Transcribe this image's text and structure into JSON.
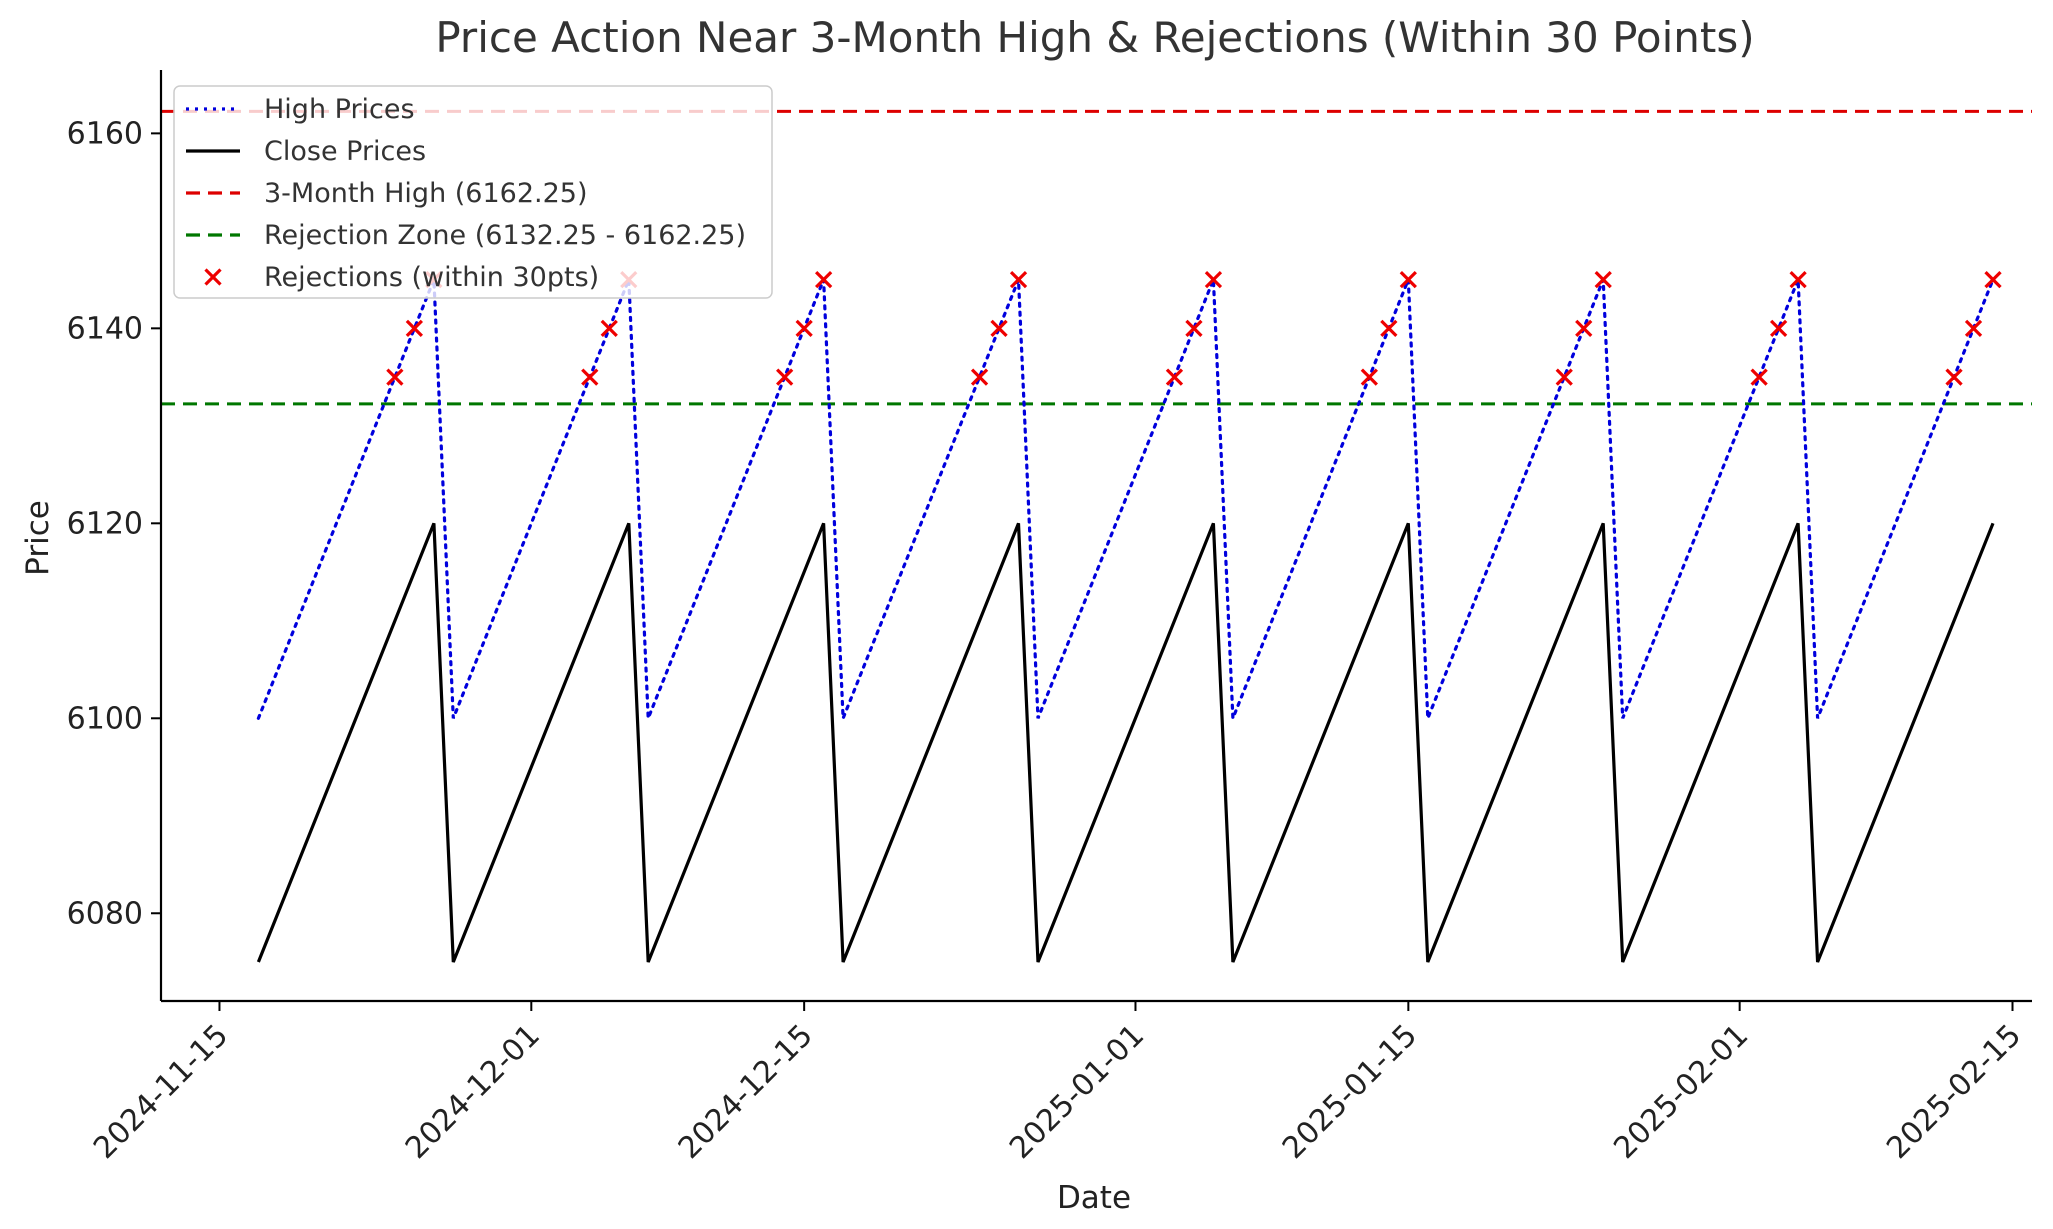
{
  "chart_data": {
    "type": "line",
    "title": "Price Action Near 3-Month High & Rejections (Within 30 Points)",
    "xlabel": "Date",
    "ylabel": "Price",
    "xlim": [
      "2024-11-12",
      "2025-02-16"
    ],
    "ylim": [
      6071,
      6166.5
    ],
    "x_ticks": [
      "2024-11-15",
      "2024-12-01",
      "2024-12-15",
      "2025-01-01",
      "2025-01-15",
      "2025-02-01",
      "2025-02-15"
    ],
    "y_ticks": [
      6080,
      6100,
      6120,
      6140,
      6160
    ],
    "grid": false,
    "legend_position": "top-left",
    "series": [
      {
        "name": "High Prices",
        "color": "#0000dd",
        "style": "dotted",
        "x": [
          "2024-11-17",
          "2024-11-26",
          "2024-11-27",
          "2024-12-06",
          "2024-12-07",
          "2024-12-16",
          "2024-12-17",
          "2024-12-26",
          "2024-12-27",
          "2025-01-05",
          "2025-01-06",
          "2025-01-15",
          "2025-01-16",
          "2025-01-25",
          "2025-01-26",
          "2025-02-04",
          "2025-02-05",
          "2025-02-14"
        ],
        "values": [
          6100,
          6145,
          6100,
          6145,
          6100,
          6145,
          6100,
          6145,
          6100,
          6145,
          6100,
          6145,
          6100,
          6145,
          6100,
          6145,
          6100,
          6145
        ]
      },
      {
        "name": "Close Prices",
        "color": "#000000",
        "style": "solid",
        "x": [
          "2024-11-17",
          "2024-11-26",
          "2024-11-27",
          "2024-12-06",
          "2024-12-07",
          "2024-12-16",
          "2024-12-17",
          "2024-12-26",
          "2024-12-27",
          "2025-01-05",
          "2025-01-06",
          "2025-01-15",
          "2025-01-16",
          "2025-01-25",
          "2025-01-26",
          "2025-02-04",
          "2025-02-05",
          "2025-02-14"
        ],
        "values": [
          6075,
          6120,
          6075,
          6120,
          6075,
          6120,
          6075,
          6120,
          6075,
          6120,
          6075,
          6120,
          6075,
          6120,
          6075,
          6120,
          6075,
          6120
        ]
      }
    ],
    "hlines": [
      {
        "name": "3-Month High (6162.25)",
        "value": 6162.25,
        "color": "#dd0000",
        "style": "dashed"
      },
      {
        "name": "Rejection Zone (6132.25 - 6162.25)",
        "value": 6132.25,
        "color": "#007700",
        "style": "dashed"
      }
    ],
    "scatter": {
      "name": "Rejections (within 30pts)",
      "color": "#ee0000",
      "marker": "x",
      "x": [
        "2024-11-24",
        "2024-11-25",
        "2024-11-26",
        "2024-12-04",
        "2024-12-05",
        "2024-12-06",
        "2024-12-14",
        "2024-12-15",
        "2024-12-16",
        "2024-12-24",
        "2024-12-25",
        "2024-12-26",
        "2025-01-03",
        "2025-01-04",
        "2025-01-05",
        "2025-01-13",
        "2025-01-14",
        "2025-01-15",
        "2025-01-23",
        "2025-01-24",
        "2025-01-25",
        "2025-02-02",
        "2025-02-03",
        "2025-02-04",
        "2025-02-12",
        "2025-02-13",
        "2025-02-14"
      ],
      "values": [
        6135,
        6140,
        6145,
        6135,
        6140,
        6145,
        6135,
        6140,
        6145,
        6135,
        6140,
        6145,
        6135,
        6140,
        6145,
        6135,
        6140,
        6145,
        6135,
        6140,
        6145,
        6135,
        6140,
        6145,
        6135,
        6140,
        6145
      ]
    }
  }
}
